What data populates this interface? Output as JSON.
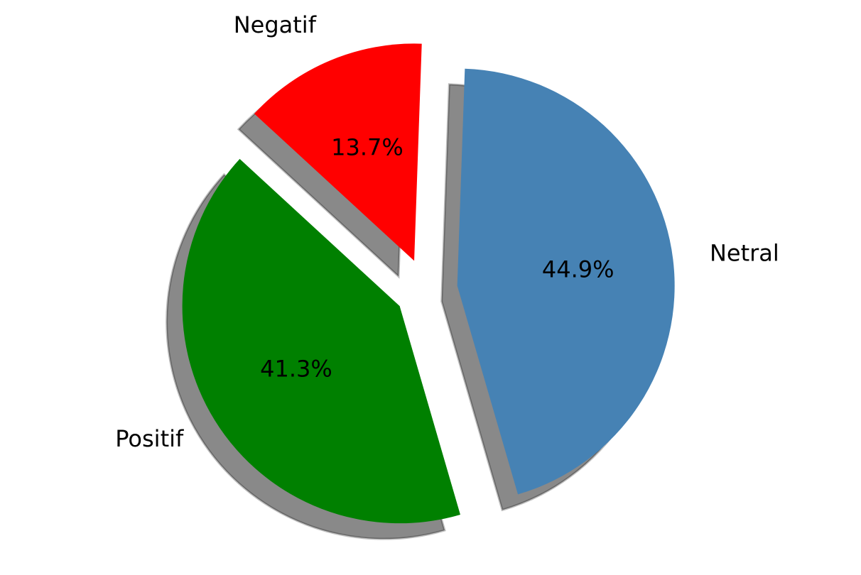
{
  "chart_data": {
    "type": "pie",
    "title": "",
    "labels": [
      "Negatif",
      "Positif",
      "Netral"
    ],
    "values": [
      13.7,
      41.3,
      44.9
    ],
    "pct_labels": [
      "13.7%",
      "41.3%",
      "44.9%"
    ],
    "colors": [
      "#ff0000",
      "#008000",
      "#4682b4"
    ],
    "exploded": true,
    "shadow": true,
    "start_angle_deg": 88,
    "legend": "none"
  }
}
